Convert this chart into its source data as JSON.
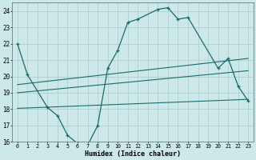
{
  "background_color": "#cce8e8",
  "grid_color": "#aacccc",
  "line_color": "#1a6b6b",
  "xlabel": "Humidex (Indice chaleur)",
  "xlim_min": -0.5,
  "xlim_max": 23.5,
  "ylim_min": 16,
  "ylim_max": 24.5,
  "yticks": [
    16,
    17,
    18,
    19,
    20,
    21,
    22,
    23,
    24
  ],
  "xticks": [
    0,
    1,
    2,
    3,
    4,
    5,
    6,
    7,
    8,
    9,
    10,
    11,
    12,
    13,
    14,
    15,
    16,
    17,
    18,
    19,
    20,
    21,
    22,
    23
  ],
  "curve_x": [
    0,
    1,
    3,
    4,
    5,
    6,
    7,
    8,
    9,
    10,
    11,
    12,
    14,
    15,
    16,
    17,
    20,
    21,
    22,
    23
  ],
  "curve_y": [
    22.0,
    20.1,
    18.1,
    17.6,
    16.4,
    15.9,
    15.8,
    17.0,
    20.5,
    21.6,
    23.3,
    23.5,
    24.1,
    24.2,
    23.5,
    23.6,
    20.5,
    21.1,
    19.4,
    18.5
  ],
  "reg1_x0": 0,
  "reg1_x1": 23,
  "reg1_y0": 19.5,
  "reg1_y1": 21.1,
  "reg2_x0": 0,
  "reg2_x1": 23,
  "reg2_y0": 19.0,
  "reg2_y1": 20.35,
  "reg3_x0": 0,
  "reg3_x1": 23,
  "reg3_y0": 18.05,
  "reg3_y1": 18.6
}
